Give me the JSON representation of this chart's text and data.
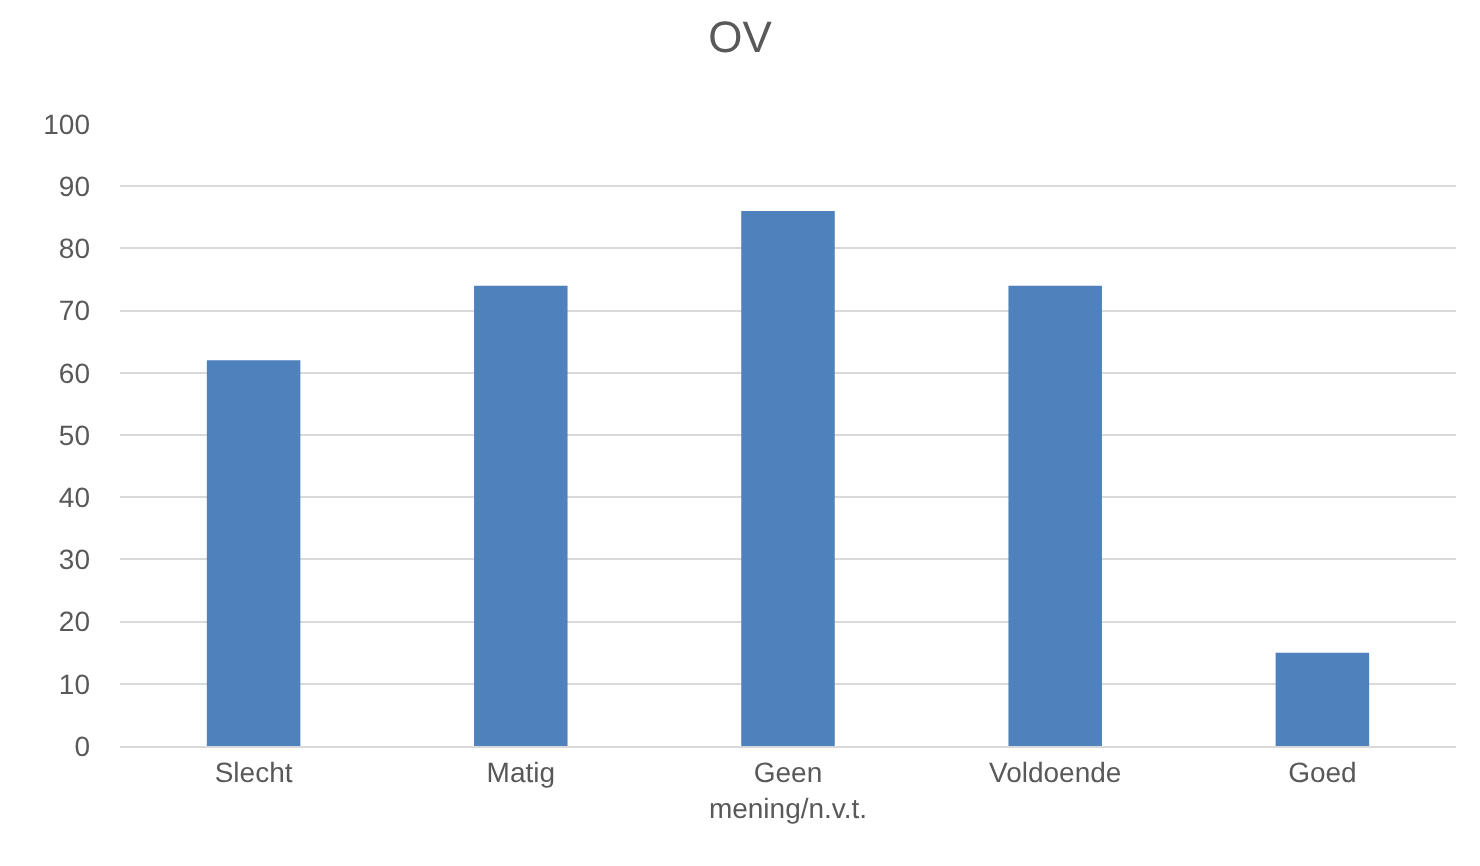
{
  "chart_data": {
    "type": "bar",
    "title": "OV",
    "categories": [
      "Slecht",
      "Matig",
      "Geen mening/n.v.t.",
      "Voldoende",
      "Goed"
    ],
    "values": [
      62,
      74,
      86,
      74,
      15
    ],
    "color": "#4f81bd",
    "ylim": [
      0,
      100
    ],
    "yticks": [
      0,
      10,
      20,
      30,
      40,
      50,
      60,
      70,
      80,
      90,
      100
    ],
    "grid": "y"
  }
}
